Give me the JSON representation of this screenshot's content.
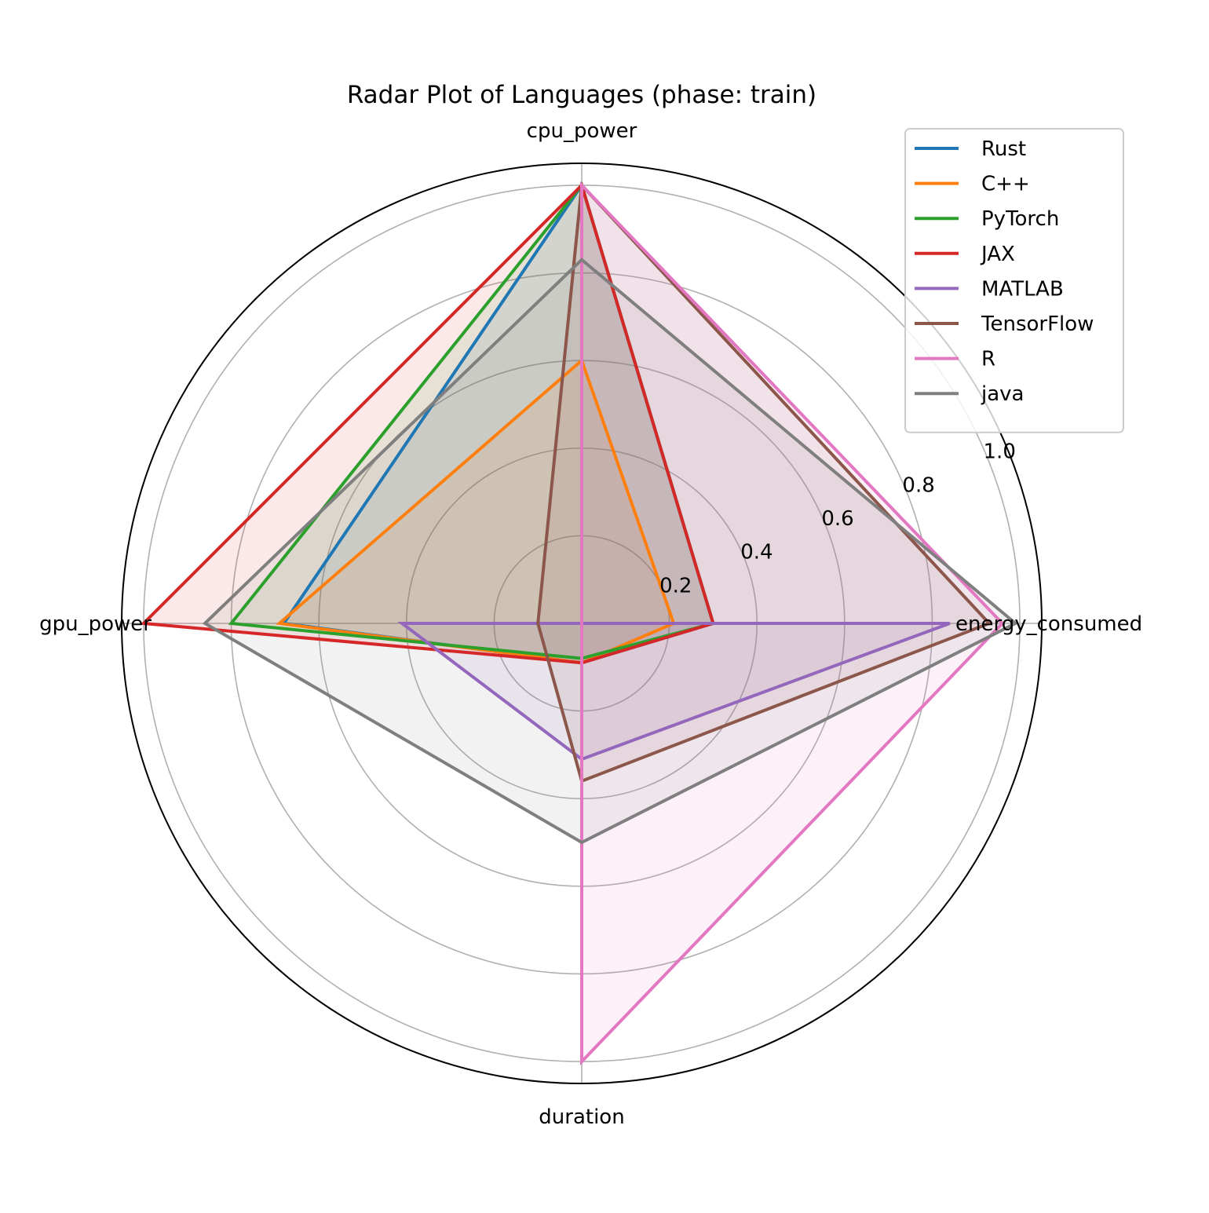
{
  "chart_data": {
    "type": "radar",
    "title": "Radar Plot of Languages (phase: train)",
    "axes": [
      "energy_consumed",
      "cpu_power",
      "gpu_power",
      "duration"
    ],
    "rlim": [
      0,
      1.05
    ],
    "rticks": [
      0.2,
      0.4,
      0.6,
      0.8,
      1.0
    ],
    "rtick_labels": [
      "0.2",
      "0.4",
      "0.6",
      "0.8",
      "1.0"
    ],
    "grid": true,
    "legend_position": "top-right",
    "series": [
      {
        "name": "Rust",
        "color": "#1f77b4",
        "values": [
          0.3,
          1.0,
          0.68,
          0.09
        ]
      },
      {
        "name": "C++",
        "color": "#ff7f0e",
        "values": [
          0.21,
          0.6,
          0.69,
          0.09
        ]
      },
      {
        "name": "PyTorch",
        "color": "#2ca02c",
        "values": [
          0.3,
          1.0,
          0.8,
          0.08
        ]
      },
      {
        "name": "JAX",
        "color": "#d62728",
        "values": [
          0.3,
          1.0,
          1.0,
          0.09
        ]
      },
      {
        "name": "MATLAB",
        "color": "#9467bd",
        "values": [
          0.84,
          0.0,
          0.41,
          0.31
        ]
      },
      {
        "name": "TensorFlow",
        "color": "#8c564b",
        "values": [
          0.93,
          1.0,
          0.1,
          0.36
        ]
      },
      {
        "name": "R",
        "color": "#e377c2",
        "values": [
          0.96,
          1.0,
          0.0,
          1.0
        ]
      },
      {
        "name": "java",
        "color": "#7f7f7f",
        "values": [
          0.99,
          0.83,
          0.86,
          0.5
        ]
      }
    ]
  }
}
